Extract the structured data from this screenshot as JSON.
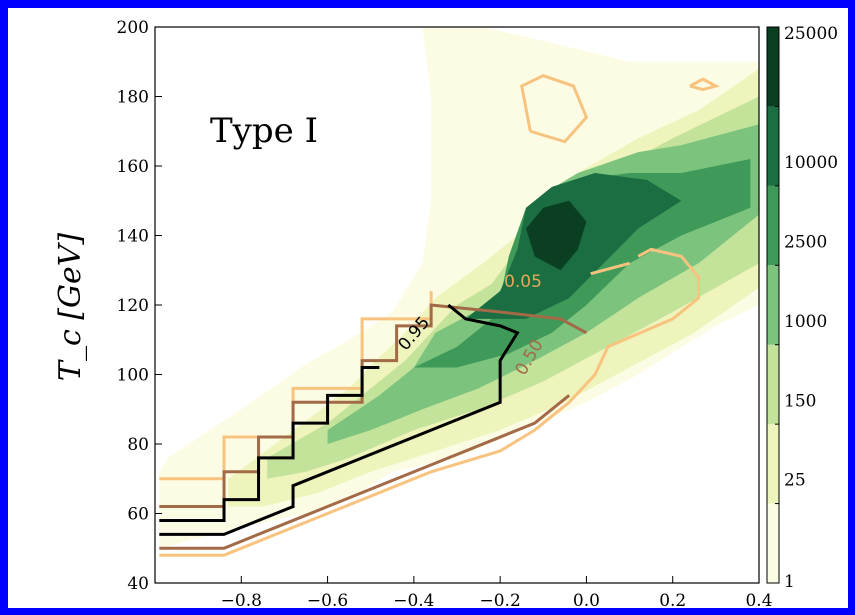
{
  "chart_data": {
    "type": "heatmap",
    "annotation": "Type I",
    "ylabel": "T_c [GeV]",
    "xlabel": "",
    "xlim": [
      -1.0,
      0.4
    ],
    "ylim": [
      40,
      200
    ],
    "xticks": [
      "−0.8",
      "−0.6",
      "−0.4",
      "−0.2",
      "0.0",
      "0.2",
      "0.4"
    ],
    "xtick_values": [
      -0.8,
      -0.6,
      -0.4,
      -0.2,
      0.0,
      0.2,
      0.4
    ],
    "yticks": [
      "40",
      "60",
      "80",
      "100",
      "120",
      "140",
      "160",
      "180",
      "200"
    ],
    "ytick_values": [
      40,
      60,
      80,
      100,
      120,
      140,
      160,
      180,
      200
    ],
    "colorbar": {
      "labels": [
        "1",
        "25",
        "150",
        "1000",
        "2500",
        "10000",
        "25000"
      ],
      "colors": [
        "#fcfce4",
        "#eef4bc",
        "#c4e39a",
        "#7cc47e",
        "#3f9a5a",
        "#1a6e42",
        "#0a3f22"
      ]
    },
    "density_regions": [
      {
        "level": "1",
        "color": "#fcfce4",
        "polygon": [
          [
            -0.99,
            72
          ],
          [
            -0.97,
            76
          ],
          [
            -0.8,
            90
          ],
          [
            -0.65,
            103
          ],
          [
            -0.55,
            110
          ],
          [
            -0.45,
            118
          ],
          [
            -0.38,
            132
          ],
          [
            -0.36,
            150
          ],
          [
            -0.36,
            180
          ],
          [
            -0.38,
            200
          ],
          [
            -0.24,
            200
          ],
          [
            -0.1,
            196
          ],
          [
            0.1,
            190
          ],
          [
            0.4,
            190
          ],
          [
            0.4,
            120
          ],
          [
            0.3,
            114
          ],
          [
            0.12,
            100
          ],
          [
            0.0,
            92
          ],
          [
            -0.3,
            76
          ],
          [
            -0.45,
            72
          ],
          [
            -0.55,
            64
          ],
          [
            -0.65,
            60
          ],
          [
            -0.8,
            56
          ],
          [
            -0.99,
            50
          ]
        ]
      },
      {
        "level": "25",
        "color": "#eef4bc",
        "polygon": [
          [
            -0.83,
            70
          ],
          [
            -0.7,
            82
          ],
          [
            -0.55,
            96
          ],
          [
            -0.48,
            105
          ],
          [
            -0.42,
            112
          ],
          [
            -0.35,
            122
          ],
          [
            -0.24,
            132
          ],
          [
            -0.14,
            142
          ],
          [
            -0.02,
            158
          ],
          [
            0.12,
            168
          ],
          [
            0.26,
            176
          ],
          [
            0.4,
            188
          ],
          [
            0.4,
            125
          ],
          [
            0.25,
            112
          ],
          [
            0.1,
            102
          ],
          [
            -0.05,
            92
          ],
          [
            -0.2,
            84
          ],
          [
            -0.35,
            78
          ],
          [
            -0.5,
            72
          ],
          [
            -0.62,
            66
          ],
          [
            -0.75,
            62
          ],
          [
            -0.83,
            62
          ]
        ]
      },
      {
        "level": "150",
        "color": "#c4e39a",
        "polygon": [
          [
            -0.74,
            76
          ],
          [
            -0.6,
            86
          ],
          [
            -0.5,
            96
          ],
          [
            -0.42,
            104
          ],
          [
            -0.36,
            112
          ],
          [
            -0.3,
            120
          ],
          [
            -0.22,
            126
          ],
          [
            -0.16,
            136
          ],
          [
            -0.08,
            148
          ],
          [
            0.05,
            158
          ],
          [
            0.2,
            168
          ],
          [
            0.4,
            180
          ],
          [
            0.4,
            132
          ],
          [
            0.2,
            118
          ],
          [
            0.05,
            108
          ],
          [
            -0.1,
            98
          ],
          [
            -0.25,
            90
          ],
          [
            -0.4,
            84
          ],
          [
            -0.55,
            76
          ],
          [
            -0.65,
            72
          ],
          [
            -0.74,
            70
          ]
        ]
      },
      {
        "level": "1000",
        "color": "#7cc47e",
        "polygon": [
          [
            -0.6,
            84
          ],
          [
            -0.48,
            94
          ],
          [
            -0.4,
            102
          ],
          [
            -0.35,
            112
          ],
          [
            -0.26,
            118
          ],
          [
            -0.18,
            126
          ],
          [
            -0.14,
            142
          ],
          [
            -0.1,
            152
          ],
          [
            -0.02,
            158
          ],
          [
            0.12,
            164
          ],
          [
            0.22,
            166
          ],
          [
            0.4,
            172
          ],
          [
            0.4,
            146
          ],
          [
            0.26,
            132
          ],
          [
            0.12,
            122
          ],
          [
            0.0,
            112
          ],
          [
            -0.12,
            104
          ],
          [
            -0.25,
            96
          ],
          [
            -0.38,
            90
          ],
          [
            -0.5,
            84
          ],
          [
            -0.6,
            80
          ]
        ]
      },
      {
        "level": "2500",
        "color": "#3f9a5a",
        "polygon": [
          [
            -0.4,
            102
          ],
          [
            -0.3,
            108
          ],
          [
            -0.22,
            116
          ],
          [
            -0.2,
            122
          ],
          [
            -0.18,
            134
          ],
          [
            -0.14,
            148
          ],
          [
            -0.02,
            156
          ],
          [
            0.1,
            158
          ],
          [
            0.22,
            158
          ],
          [
            0.38,
            162
          ],
          [
            0.38,
            148
          ],
          [
            0.22,
            140
          ],
          [
            0.1,
            132
          ],
          [
            0.0,
            120
          ],
          [
            -0.08,
            112
          ],
          [
            -0.18,
            106
          ],
          [
            -0.3,
            102
          ]
        ]
      },
      {
        "level": "10000",
        "color": "#1a6e42",
        "polygon": [
          [
            -0.28,
            116
          ],
          [
            -0.2,
            124
          ],
          [
            -0.16,
            136
          ],
          [
            -0.14,
            148
          ],
          [
            -0.08,
            154
          ],
          [
            0.02,
            158
          ],
          [
            0.14,
            156
          ],
          [
            0.22,
            150
          ],
          [
            0.12,
            142
          ],
          [
            0.04,
            132
          ],
          [
            -0.04,
            122
          ],
          [
            -0.14,
            116
          ]
        ]
      },
      {
        "level": "25000",
        "color": "#0a3f22",
        "polygon": [
          [
            -0.12,
            134
          ],
          [
            -0.14,
            142
          ],
          [
            -0.1,
            148
          ],
          [
            -0.04,
            150
          ],
          [
            0.0,
            144
          ],
          [
            -0.02,
            136
          ],
          [
            -0.06,
            130
          ]
        ]
      }
    ],
    "probability_contours": [
      {
        "label": "0.05",
        "color": "#f8c37f",
        "segments": [
          [
            [
              -0.99,
              70
            ],
            [
              -0.84,
              70
            ],
            [
              -0.84,
              82
            ],
            [
              -0.68,
              82
            ],
            [
              -0.68,
              96
            ],
            [
              -0.52,
              96
            ],
            [
              -0.52,
              116
            ],
            [
              -0.36,
              116
            ],
            [
              -0.36,
              124
            ]
          ],
          [
            [
              -0.99,
              48
            ],
            [
              -0.84,
              48
            ],
            [
              -0.68,
              56
            ],
            [
              -0.52,
              64
            ],
            [
              -0.36,
              72
            ],
            [
              -0.2,
              78
            ],
            [
              -0.12,
              84
            ],
            [
              -0.04,
              92
            ],
            [
              0.02,
              100
            ],
            [
              0.05,
              108
            ],
            [
              0.2,
              116
            ],
            [
              0.26,
              122
            ],
            [
              0.26,
              128
            ],
            [
              0.22,
              134
            ],
            [
              0.15,
              136
            ],
            [
              0.12,
              134
            ]
          ],
          [
            [
              0.01,
              129
            ],
            [
              0.1,
              132
            ]
          ],
          [
            [
              -0.13,
              170
            ],
            [
              -0.05,
              167
            ],
            [
              0.0,
              174
            ],
            [
              -0.03,
              183
            ],
            [
              -0.1,
              186
            ],
            [
              -0.15,
              183
            ],
            [
              -0.13,
              170
            ]
          ],
          [
            [
              0.24,
              183
            ],
            [
              0.27,
              185
            ],
            [
              0.3,
              183
            ],
            [
              0.27,
              182
            ],
            [
              0.24,
              183
            ]
          ]
        ]
      },
      {
        "label": "0.50",
        "color": "#a36a48",
        "segments": [
          [
            [
              -0.99,
              62
            ],
            [
              -0.84,
              62
            ],
            [
              -0.84,
              72
            ],
            [
              -0.76,
              72
            ],
            [
              -0.76,
              82
            ],
            [
              -0.68,
              82
            ],
            [
              -0.68,
              92
            ],
            [
              -0.52,
              92
            ],
            [
              -0.52,
              104
            ],
            [
              -0.44,
              104
            ],
            [
              -0.44,
              114
            ],
            [
              -0.36,
              114
            ],
            [
              -0.36,
              120
            ],
            [
              -0.2,
              118
            ],
            [
              -0.06,
              116
            ],
            [
              0.0,
              112
            ]
          ],
          [
            [
              -0.99,
              50
            ],
            [
              -0.84,
              50
            ],
            [
              -0.68,
              58
            ],
            [
              -0.52,
              66
            ],
            [
              -0.36,
              74
            ],
            [
              -0.2,
              82
            ],
            [
              -0.12,
              86
            ],
            [
              -0.04,
              94
            ]
          ]
        ]
      },
      {
        "label": "0.95",
        "color": "#000000",
        "segments": [
          [
            [
              -0.99,
              58
            ],
            [
              -0.84,
              58
            ],
            [
              -0.84,
              64
            ],
            [
              -0.76,
              64
            ],
            [
              -0.76,
              76
            ],
            [
              -0.68,
              76
            ],
            [
              -0.68,
              86
            ],
            [
              -0.6,
              86
            ],
            [
              -0.6,
              94
            ],
            [
              -0.52,
              94
            ],
            [
              -0.52,
              102
            ],
            [
              -0.48,
              102
            ]
          ],
          [
            [
              -0.99,
              54
            ],
            [
              -0.84,
              54
            ],
            [
              -0.68,
              62
            ],
            [
              -0.68,
              68
            ],
            [
              -0.52,
              76
            ],
            [
              -0.36,
              84
            ],
            [
              -0.2,
              92
            ],
            [
              -0.2,
              104
            ],
            [
              -0.16,
              112
            ],
            [
              -0.2,
              114
            ],
            [
              -0.28,
              116
            ],
            [
              -0.32,
              120
            ]
          ]
        ]
      }
    ]
  }
}
